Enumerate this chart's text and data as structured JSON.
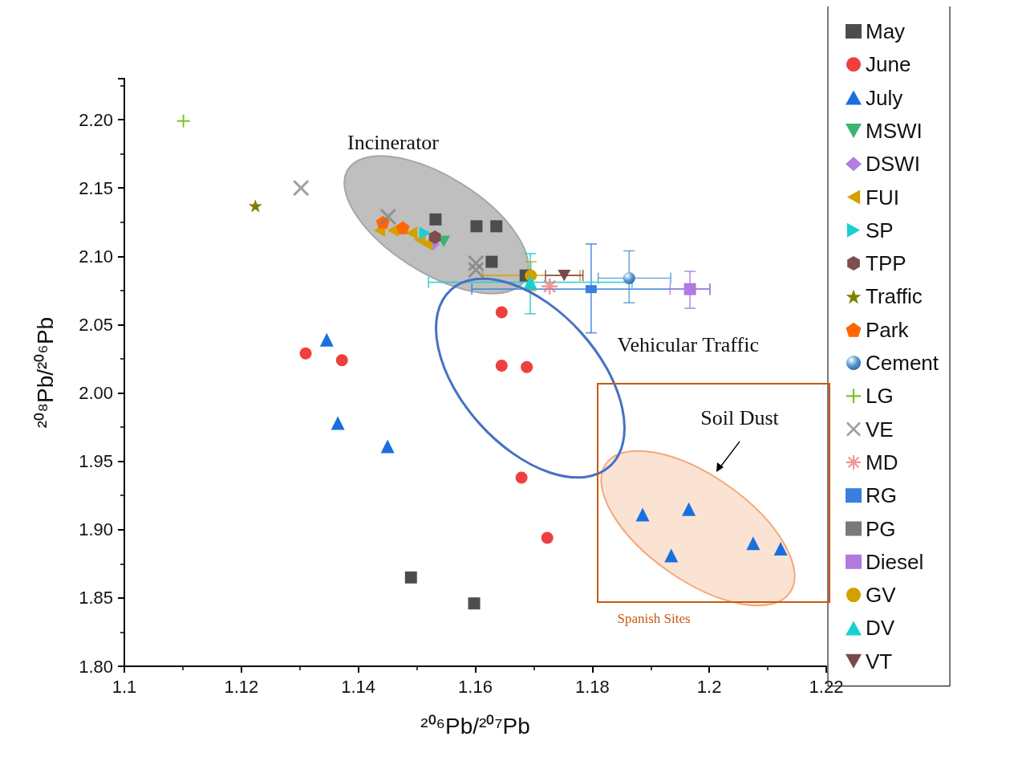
{
  "chart_data": {
    "type": "scatter",
    "xlabel": "²⁰⁶Pb/²⁰⁷Pb",
    "ylabel": "²⁰⁸Pb/²⁰⁶Pb",
    "xlim": [
      1.1,
      1.22
    ],
    "xticks": [
      1.1,
      1.12,
      1.14,
      1.16,
      1.18,
      1.2,
      1.22
    ],
    "ylim": [
      1.8,
      2.23
    ],
    "yticks": [
      {
        "value": 1.8,
        "label": "1.80"
      },
      {
        "value": 1.85,
        "label": "1.85"
      },
      {
        "value": 1.9,
        "label": "1.90"
      },
      {
        "value": 1.95,
        "label": "1.95"
      },
      {
        "value": 2.0,
        "label": "2.00"
      },
      {
        "value": 2.05,
        "label": "2.05"
      },
      {
        "value": 2.1,
        "label": "2.10"
      },
      {
        "value": 2.15,
        "label": "2.15"
      },
      {
        "value": 2.2,
        "label": "2.20"
      }
    ],
    "grid": false,
    "legend": "right",
    "annotations": [
      "Incinerator",
      "Vehicular Traffic",
      "Soil Dust",
      "Spanish Sites"
    ],
    "series": [
      {
        "name": "May",
        "color": "#4d4d4d",
        "marker": "square",
        "x": [
          1.1532,
          1.1602,
          1.1636,
          1.1628,
          1.1686,
          1.149,
          1.1598
        ],
        "values": [
          2.127,
          2.122,
          2.122,
          2.096,
          2.086,
          1.865,
          1.846
        ]
      },
      {
        "name": "June",
        "color": "#ef4040",
        "marker": "circle",
        "x": [
          1.131,
          1.1372,
          1.1645,
          1.1645,
          1.1688,
          1.1679,
          1.1723
        ],
        "values": [
          2.029,
          2.024,
          2.059,
          2.02,
          2.019,
          1.938,
          1.894
        ]
      },
      {
        "name": "July",
        "color": "#1a6fdf",
        "marker": "triangle",
        "x": [
          1.1346,
          1.1365,
          1.145,
          1.1886,
          1.1965,
          1.1935,
          1.2075,
          1.2122
        ],
        "values": [
          2.039,
          1.978,
          1.961,
          1.911,
          1.915,
          1.881,
          1.89,
          1.886
        ]
      },
      {
        "name": "MSWI",
        "color": "#3cb371",
        "marker": "triangle-down",
        "x": [
          1.1546
        ],
        "values": [
          2.111
        ]
      },
      {
        "name": "DSWI",
        "color": "#b27ee0",
        "marker": "diamond",
        "x": [
          1.1528
        ],
        "values": [
          2.109
        ]
      },
      {
        "name": "FUI",
        "color": "#d2a100",
        "marker": "triangle-left",
        "x": [
          1.1436,
          1.1459,
          1.1491,
          1.1505,
          1.1517
        ],
        "values": [
          2.119,
          2.119,
          2.117,
          2.112,
          2.109
        ]
      },
      {
        "name": "SP",
        "color": "#1ccfcf",
        "marker": "triangle-right",
        "x": [
          1.1514
        ],
        "values": [
          2.117
        ]
      },
      {
        "name": "TPP",
        "color": "#7b4f4f",
        "x": [
          1.1531
        ],
        "values": [
          2.114
        ]
      },
      {
        "name": "Traffic",
        "color": "#808000",
        "marker": "star",
        "x": [
          1.1224
        ],
        "values": [
          2.137
        ]
      },
      {
        "name": "Park",
        "color": "#ff6600",
        "x": [
          1.1442,
          1.1476
        ],
        "values": [
          2.125,
          2.121
        ]
      },
      {
        "name": "Cement",
        "color": "#5a9bd5",
        "marker": "circle",
        "x": [
          1.1863
        ],
        "values": [
          2.084
        ],
        "xerrors": [
          [
            1.181,
            1.1934
          ]
        ],
        "errors": [
          [
            2.066,
            2.104
          ]
        ]
      },
      {
        "name": "LG",
        "color": "#7ec02a",
        "marker": "plus",
        "x": [
          1.1101
        ],
        "values": [
          2.199
        ]
      },
      {
        "name": "VE",
        "color": "#808080",
        "marker": "x",
        "x": [
          1.1302,
          1.1451,
          1.1601,
          1.1601
        ],
        "values": [
          2.15,
          2.129,
          2.095,
          2.09
        ]
      },
      {
        "name": "MD",
        "color": "#f07070",
        "marker": "asterisk",
        "x": [
          1.1727
        ],
        "values": [
          2.078
        ]
      },
      {
        "name": "RG",
        "color": "#3a7fe0",
        "x": [
          1.1798
        ],
        "values": [
          2.076
        ],
        "xerrors": [
          [
            1.1594,
            1.2001
          ]
        ],
        "errors": [
          [
            2.044,
            2.109
          ]
        ]
      },
      {
        "name": "PG",
        "color": "#7a7a7a",
        "x": [
          null
        ],
        "values": [
          null
        ]
      },
      {
        "name": "Diesel",
        "color": "#b07ae0",
        "marker": "square",
        "x": [
          1.1967
        ],
        "values": [
          2.076
        ],
        "xerrors": [
          [
            1.1933,
            1.2001
          ]
        ],
        "errors": [
          [
            2.062,
            2.089
          ]
        ]
      },
      {
        "name": "GV",
        "color": "#d2a100",
        "marker": "circle",
        "x": [
          1.1695
        ],
        "values": [
          2.086
        ],
        "xerrors": [
          [
            1.1613,
            1.1779
          ]
        ],
        "errors": [
          [
            2.075,
            2.096
          ]
        ]
      },
      {
        "name": "DV",
        "color": "#1ccfcf",
        "marker": "triangle",
        "x": [
          1.1694
        ],
        "values": [
          2.081
        ],
        "xerrors": [
          [
            1.152,
            1.1868
          ]
        ],
        "errors": [
          [
            2.058,
            2.102
          ]
        ]
      },
      {
        "name": "VT",
        "color": "#7b4848",
        "marker": "triangle-down",
        "x": [
          1.1752
        ],
        "values": [
          2.086
        ],
        "xerrors": [
          [
            1.172,
            1.1784
          ]
        ]
      }
    ]
  }
}
